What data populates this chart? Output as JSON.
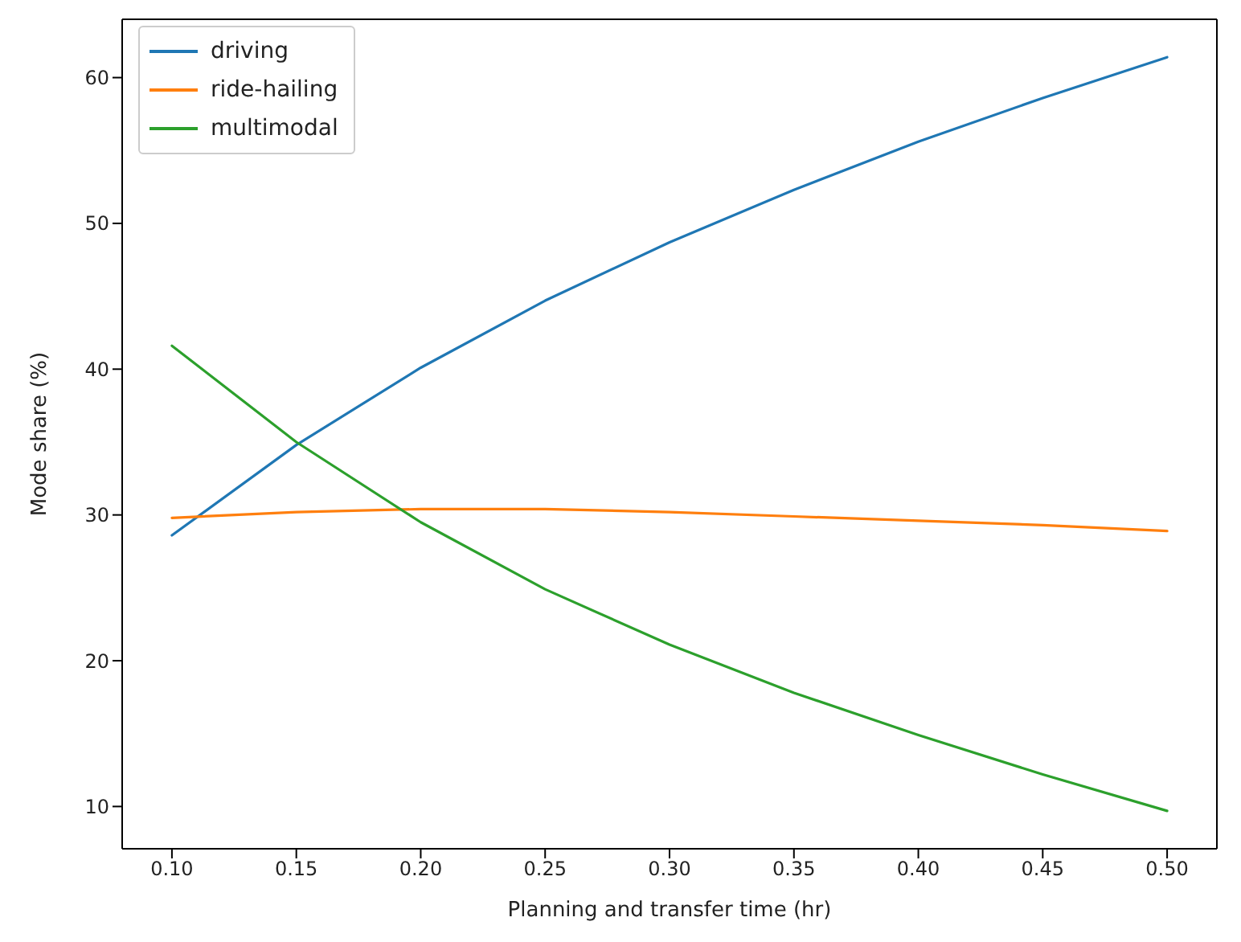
{
  "chart_data": {
    "type": "line",
    "xlabel": "Planning and transfer time (hr)",
    "ylabel": "Mode share (%)",
    "x": [
      0.1,
      0.15,
      0.2,
      0.25,
      0.3,
      0.35,
      0.4,
      0.45,
      0.5
    ],
    "series": [
      {
        "name": "driving",
        "color": "#1f77b4",
        "values": [
          28.6,
          34.8,
          40.1,
          44.7,
          48.7,
          52.3,
          55.6,
          58.6,
          61.4
        ]
      },
      {
        "name": "ride-hailing",
        "color": "#ff7f0e",
        "values": [
          29.8,
          30.2,
          30.4,
          30.4,
          30.2,
          29.9,
          29.6,
          29.3,
          28.9
        ]
      },
      {
        "name": "multimodal",
        "color": "#2ca02c",
        "values": [
          41.6,
          35.0,
          29.5,
          24.9,
          21.1,
          17.8,
          14.9,
          12.2,
          9.7
        ]
      }
    ],
    "xlim": [
      0.08,
      0.52
    ],
    "xticks": [
      {
        "value": 0.1,
        "label": "0.10"
      },
      {
        "value": 0.15,
        "label": "0.15"
      },
      {
        "value": 0.2,
        "label": "0.20"
      },
      {
        "value": 0.25,
        "label": "0.25"
      },
      {
        "value": 0.3,
        "label": "0.30"
      },
      {
        "value": 0.35,
        "label": "0.35"
      },
      {
        "value": 0.4,
        "label": "0.40"
      },
      {
        "value": 0.45,
        "label": "0.45"
      },
      {
        "value": 0.5,
        "label": "0.50"
      }
    ],
    "ylim": [
      7.1,
      64.0
    ],
    "yticks": [
      10,
      20,
      30,
      40,
      50,
      60
    ],
    "legend": "top left",
    "grid": false
  }
}
